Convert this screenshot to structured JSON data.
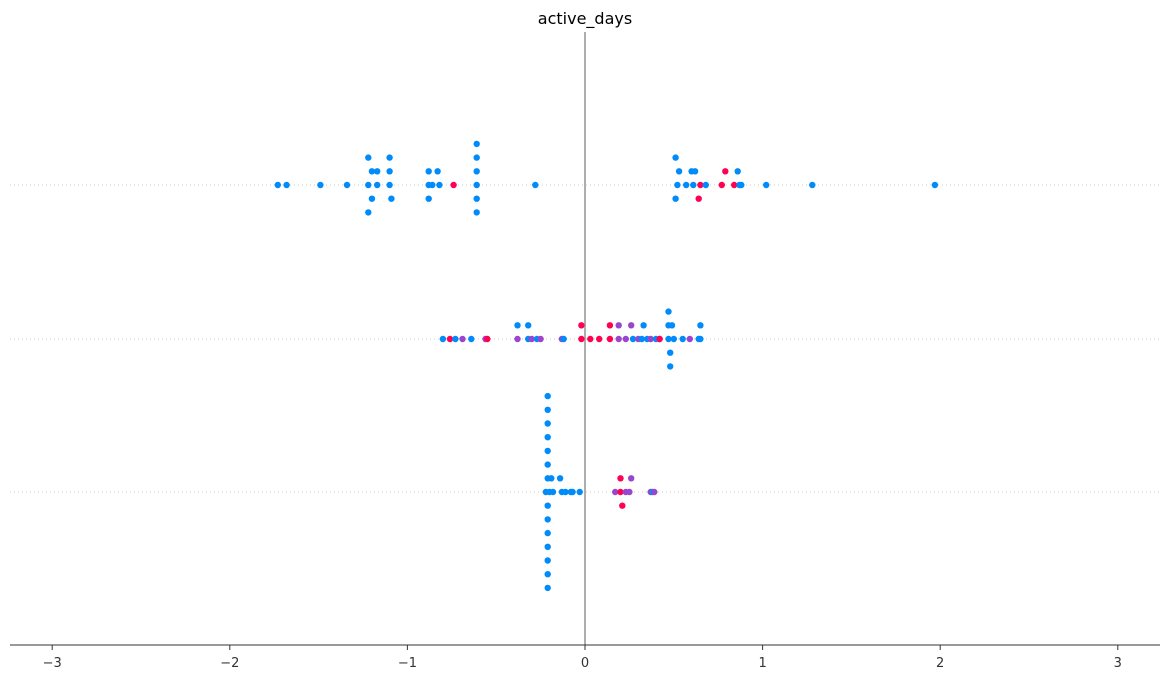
{
  "chart_data": {
    "type": "scatter",
    "title": "active_days",
    "xlabel": "",
    "ylabel": "",
    "xlim": [
      -3.3,
      3.3
    ],
    "xticks": [
      {
        "value": -3,
        "label": "−3"
      },
      {
        "value": -2,
        "label": "−2"
      },
      {
        "value": -1,
        "label": "−1"
      },
      {
        "value": 0,
        "label": "0"
      },
      {
        "value": 1,
        "label": "1"
      },
      {
        "value": 2,
        "label": "2"
      },
      {
        "value": 3,
        "label": "3"
      }
    ],
    "zero_line": true,
    "grid": false,
    "colors": {
      "low": "#008bfb",
      "mid": "#9b45cc",
      "high": "#ff0052",
      "zero_line": "#999999",
      "row_line": "#cccccc",
      "axis": "#333333"
    },
    "rows": [
      {
        "points": [
          {
            "x": -1.73,
            "offset": 0,
            "level": "low"
          },
          {
            "x": -1.68,
            "offset": 0,
            "level": "low"
          },
          {
            "x": -1.49,
            "offset": 0,
            "level": "low"
          },
          {
            "x": -1.34,
            "offset": 0,
            "level": "low"
          },
          {
            "x": -1.22,
            "offset": 2,
            "level": "low"
          },
          {
            "x": -1.2,
            "offset": 1,
            "level": "low"
          },
          {
            "x": -1.22,
            "offset": 0,
            "level": "low"
          },
          {
            "x": -1.2,
            "offset": -1,
            "level": "low"
          },
          {
            "x": -1.22,
            "offset": -2,
            "level": "low"
          },
          {
            "x": -1.17,
            "offset": 1,
            "level": "low"
          },
          {
            "x": -1.17,
            "offset": 0,
            "level": "low"
          },
          {
            "x": -1.1,
            "offset": 2,
            "level": "low"
          },
          {
            "x": -1.1,
            "offset": 1,
            "level": "low"
          },
          {
            "x": -1.1,
            "offset": 0,
            "level": "low"
          },
          {
            "x": -1.09,
            "offset": -1,
            "level": "low"
          },
          {
            "x": -0.88,
            "offset": 1,
            "level": "low"
          },
          {
            "x": -0.88,
            "offset": 0,
            "level": "low"
          },
          {
            "x": -0.88,
            "offset": -1,
            "level": "low"
          },
          {
            "x": -0.86,
            "offset": 0,
            "level": "low"
          },
          {
            "x": -0.83,
            "offset": 1,
            "level": "low"
          },
          {
            "x": -0.82,
            "offset": 0,
            "level": "low"
          },
          {
            "x": -0.74,
            "offset": 0,
            "level": "high"
          },
          {
            "x": -0.61,
            "offset": 3,
            "level": "low"
          },
          {
            "x": -0.61,
            "offset": 2,
            "level": "low"
          },
          {
            "x": -0.61,
            "offset": 1,
            "level": "low"
          },
          {
            "x": -0.61,
            "offset": 0,
            "level": "low"
          },
          {
            "x": -0.61,
            "offset": -1,
            "level": "low"
          },
          {
            "x": -0.61,
            "offset": -2,
            "level": "low"
          },
          {
            "x": -0.28,
            "offset": 0,
            "level": "low"
          },
          {
            "x": 0.51,
            "offset": 2,
            "level": "low"
          },
          {
            "x": 0.53,
            "offset": 1,
            "level": "low"
          },
          {
            "x": 0.52,
            "offset": 0,
            "level": "low"
          },
          {
            "x": 0.51,
            "offset": -1,
            "level": "low"
          },
          {
            "x": 0.57,
            "offset": 0,
            "level": "low"
          },
          {
            "x": 0.6,
            "offset": 1,
            "level": "low"
          },
          {
            "x": 0.61,
            "offset": 0,
            "level": "low"
          },
          {
            "x": 0.62,
            "offset": 1,
            "level": "low"
          },
          {
            "x": 0.64,
            "offset": -1,
            "level": "high"
          },
          {
            "x": 0.65,
            "offset": 0,
            "level": "high"
          },
          {
            "x": 0.68,
            "offset": 0,
            "level": "low"
          },
          {
            "x": 0.77,
            "offset": 0,
            "level": "high"
          },
          {
            "x": 0.79,
            "offset": 1,
            "level": "high"
          },
          {
            "x": 0.84,
            "offset": 0,
            "level": "high"
          },
          {
            "x": 0.86,
            "offset": 1,
            "level": "low"
          },
          {
            "x": 0.87,
            "offset": 0,
            "level": "low"
          },
          {
            "x": 0.88,
            "offset": 0,
            "level": "low"
          },
          {
            "x": 1.02,
            "offset": 0,
            "level": "low"
          },
          {
            "x": 1.28,
            "offset": 0,
            "level": "low"
          },
          {
            "x": 1.97,
            "offset": 0,
            "level": "low"
          }
        ]
      },
      {
        "points": [
          {
            "x": -0.8,
            "offset": 0,
            "level": "low"
          },
          {
            "x": -0.76,
            "offset": 0,
            "level": "high"
          },
          {
            "x": -0.73,
            "offset": 0,
            "level": "low"
          },
          {
            "x": -0.69,
            "offset": 0,
            "level": "mid"
          },
          {
            "x": -0.64,
            "offset": 0,
            "level": "low"
          },
          {
            "x": -0.56,
            "offset": 0,
            "level": "mid"
          },
          {
            "x": -0.55,
            "offset": 0,
            "level": "high"
          },
          {
            "x": -0.38,
            "offset": 1,
            "level": "low"
          },
          {
            "x": -0.38,
            "offset": 0,
            "level": "mid"
          },
          {
            "x": -0.32,
            "offset": 1,
            "level": "low"
          },
          {
            "x": -0.32,
            "offset": 0,
            "level": "low"
          },
          {
            "x": -0.3,
            "offset": 0,
            "level": "mid"
          },
          {
            "x": -0.27,
            "offset": 0,
            "level": "low"
          },
          {
            "x": -0.25,
            "offset": 0,
            "level": "mid"
          },
          {
            "x": -0.13,
            "offset": 0,
            "level": "mid"
          },
          {
            "x": -0.12,
            "offset": 0,
            "level": "low"
          },
          {
            "x": -0.02,
            "offset": 1,
            "level": "high"
          },
          {
            "x": -0.02,
            "offset": 0,
            "level": "high"
          },
          {
            "x": 0.03,
            "offset": 0,
            "level": "high"
          },
          {
            "x": 0.08,
            "offset": 0,
            "level": "high"
          },
          {
            "x": 0.14,
            "offset": 1,
            "level": "high"
          },
          {
            "x": 0.14,
            "offset": 0,
            "level": "high"
          },
          {
            "x": 0.19,
            "offset": 1,
            "level": "mid"
          },
          {
            "x": 0.19,
            "offset": 0,
            "level": "mid"
          },
          {
            "x": 0.23,
            "offset": 0,
            "level": "mid"
          },
          {
            "x": 0.26,
            "offset": 1,
            "level": "mid"
          },
          {
            "x": 0.27,
            "offset": 0,
            "level": "low"
          },
          {
            "x": 0.3,
            "offset": 0,
            "level": "mid"
          },
          {
            "x": 0.32,
            "offset": 0,
            "level": "low"
          },
          {
            "x": 0.33,
            "offset": 1,
            "level": "low"
          },
          {
            "x": 0.35,
            "offset": 0,
            "level": "low"
          },
          {
            "x": 0.37,
            "offset": 0,
            "level": "mid"
          },
          {
            "x": 0.4,
            "offset": 0,
            "level": "low"
          },
          {
            "x": 0.42,
            "offset": 0,
            "level": "mid"
          },
          {
            "x": 0.42,
            "offset": 0,
            "level": "high"
          },
          {
            "x": 0.47,
            "offset": 2,
            "level": "low"
          },
          {
            "x": 0.47,
            "offset": 1,
            "level": "low"
          },
          {
            "x": 0.47,
            "offset": 0,
            "level": "low"
          },
          {
            "x": 0.48,
            "offset": -1,
            "level": "low"
          },
          {
            "x": 0.48,
            "offset": -2,
            "level": "low"
          },
          {
            "x": 0.49,
            "offset": 1,
            "level": "low"
          },
          {
            "x": 0.5,
            "offset": 0,
            "level": "low"
          },
          {
            "x": 0.55,
            "offset": 0,
            "level": "low"
          },
          {
            "x": 0.59,
            "offset": 0,
            "level": "mid"
          },
          {
            "x": 0.64,
            "offset": 0,
            "level": "low"
          },
          {
            "x": 0.65,
            "offset": 1,
            "level": "low"
          },
          {
            "x": 0.65,
            "offset": 0,
            "level": "low"
          }
        ]
      },
      {
        "points": [
          {
            "x": -0.21,
            "offset": 7,
            "level": "low"
          },
          {
            "x": -0.21,
            "offset": 6,
            "level": "low"
          },
          {
            "x": -0.21,
            "offset": 5,
            "level": "low"
          },
          {
            "x": -0.21,
            "offset": 4,
            "level": "low"
          },
          {
            "x": -0.21,
            "offset": 3,
            "level": "low"
          },
          {
            "x": -0.21,
            "offset": 2,
            "level": "low"
          },
          {
            "x": -0.21,
            "offset": 1,
            "level": "low"
          },
          {
            "x": -0.22,
            "offset": 0,
            "level": "low"
          },
          {
            "x": -0.21,
            "offset": -1,
            "level": "low"
          },
          {
            "x": -0.21,
            "offset": -2,
            "level": "low"
          },
          {
            "x": -0.21,
            "offset": -3,
            "level": "low"
          },
          {
            "x": -0.21,
            "offset": -4,
            "level": "low"
          },
          {
            "x": -0.21,
            "offset": -5,
            "level": "low"
          },
          {
            "x": -0.21,
            "offset": -6,
            "level": "low"
          },
          {
            "x": -0.21,
            "offset": -7,
            "level": "low"
          },
          {
            "x": -0.2,
            "offset": 0,
            "level": "low"
          },
          {
            "x": -0.19,
            "offset": 1,
            "level": "low"
          },
          {
            "x": -0.18,
            "offset": 0,
            "level": "low"
          },
          {
            "x": -0.14,
            "offset": 1,
            "level": "low"
          },
          {
            "x": -0.13,
            "offset": 0,
            "level": "low"
          },
          {
            "x": -0.11,
            "offset": 0,
            "level": "low"
          },
          {
            "x": -0.08,
            "offset": 0,
            "level": "low"
          },
          {
            "x": -0.07,
            "offset": 0,
            "level": "low"
          },
          {
            "x": -0.03,
            "offset": 0,
            "level": "low"
          },
          {
            "x": 0.17,
            "offset": 0,
            "level": "mid"
          },
          {
            "x": 0.2,
            "offset": 1,
            "level": "high"
          },
          {
            "x": 0.2,
            "offset": 0,
            "level": "high"
          },
          {
            "x": 0.21,
            "offset": -1,
            "level": "high"
          },
          {
            "x": 0.23,
            "offset": 0,
            "level": "mid"
          },
          {
            "x": 0.25,
            "offset": 0,
            "level": "mid"
          },
          {
            "x": 0.26,
            "offset": 1,
            "level": "mid"
          },
          {
            "x": 0.37,
            "offset": 0,
            "level": "mid"
          },
          {
            "x": 0.38,
            "offset": 0,
            "level": "low"
          },
          {
            "x": 0.39,
            "offset": 0,
            "level": "mid"
          }
        ]
      }
    ]
  }
}
